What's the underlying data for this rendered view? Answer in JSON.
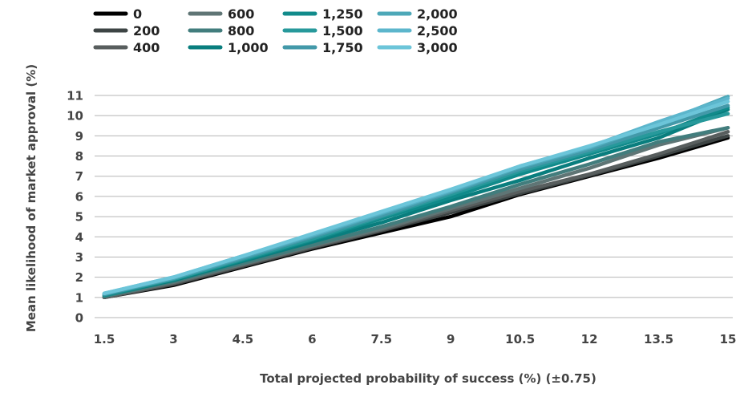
{
  "chart_data": {
    "type": "line",
    "title": "",
    "xlabel": "Total projected probability of success (%) (±0.75)",
    "ylabel": "Mean likelihood of market approval (%)",
    "x": [
      1.5,
      3,
      4.5,
      6,
      7.5,
      9,
      10.5,
      12,
      13.5,
      15
    ],
    "x_tick_labels": [
      "1.5",
      "3",
      "4.5",
      "6",
      "7.5",
      "9",
      "10.5",
      "12",
      "13.5",
      "15"
    ],
    "xlim": [
      1.5,
      15
    ],
    "ylim": [
      0,
      11
    ],
    "y_ticks": [
      0,
      1,
      2,
      3,
      4,
      5,
      6,
      7,
      8,
      9,
      10,
      11
    ],
    "y_tick_labels": [
      "0",
      "1",
      "2",
      "3",
      "4",
      "5",
      "6",
      "7",
      "8",
      "9",
      "10",
      "11"
    ],
    "grid": true,
    "legend_position": "top-left",
    "series": [
      {
        "name": "0",
        "color": "#000000",
        "values": [
          1.0,
          1.6,
          2.5,
          3.4,
          4.2,
          5.0,
          6.1,
          7.0,
          7.9,
          8.9
        ]
      },
      {
        "name": "200",
        "color": "#3d4444",
        "values": [
          1.0,
          1.65,
          2.55,
          3.45,
          4.3,
          5.2,
          6.15,
          7.05,
          8.0,
          9.0
        ]
      },
      {
        "name": "400",
        "color": "#585e5e",
        "values": [
          1.0,
          1.7,
          2.6,
          3.5,
          4.35,
          5.3,
          6.25,
          7.1,
          8.1,
          9.2
        ]
      },
      {
        "name": "600",
        "color": "#5f7575",
        "values": [
          1.05,
          1.75,
          2.65,
          3.55,
          4.4,
          5.4,
          6.4,
          7.4,
          8.55,
          9.4
        ]
      },
      {
        "name": "800",
        "color": "#427d7d",
        "values": [
          1.05,
          1.8,
          2.7,
          3.6,
          4.5,
          5.5,
          6.6,
          7.6,
          8.7,
          9.4
        ]
      },
      {
        "name": "1,000",
        "color": "#097e7e",
        "values": [
          1.1,
          1.85,
          2.8,
          3.75,
          4.7,
          5.8,
          6.8,
          7.9,
          8.9,
          10.3
        ]
      },
      {
        "name": "1,250",
        "color": "#118b8b",
        "values": [
          1.1,
          1.9,
          2.85,
          3.85,
          4.9,
          5.95,
          7.1,
          8.1,
          9.1,
          10.4
        ]
      },
      {
        "name": "1,500",
        "color": "#27999b",
        "values": [
          1.15,
          1.9,
          2.9,
          3.9,
          5.0,
          6.1,
          7.25,
          8.2,
          9.2,
          10.1
        ]
      },
      {
        "name": "1,750",
        "color": "#4399a9",
        "values": [
          1.15,
          1.95,
          2.95,
          4.0,
          5.05,
          6.2,
          7.35,
          8.3,
          9.4,
          10.5
        ]
      },
      {
        "name": "2,000",
        "color": "#4da8b8",
        "values": [
          1.2,
          1.95,
          3.0,
          4.05,
          5.15,
          6.25,
          7.45,
          8.4,
          9.6,
          10.95
        ]
      },
      {
        "name": "2,500",
        "color": "#5cb6cc",
        "values": [
          1.2,
          2.0,
          3.05,
          4.1,
          5.2,
          6.3,
          7.5,
          8.45,
          9.7,
          10.85
        ]
      },
      {
        "name": "3,000",
        "color": "#6cc5d9",
        "values": [
          1.2,
          2.0,
          3.05,
          4.15,
          5.25,
          6.35,
          7.5,
          8.5,
          9.55,
          10.7
        ]
      }
    ]
  }
}
